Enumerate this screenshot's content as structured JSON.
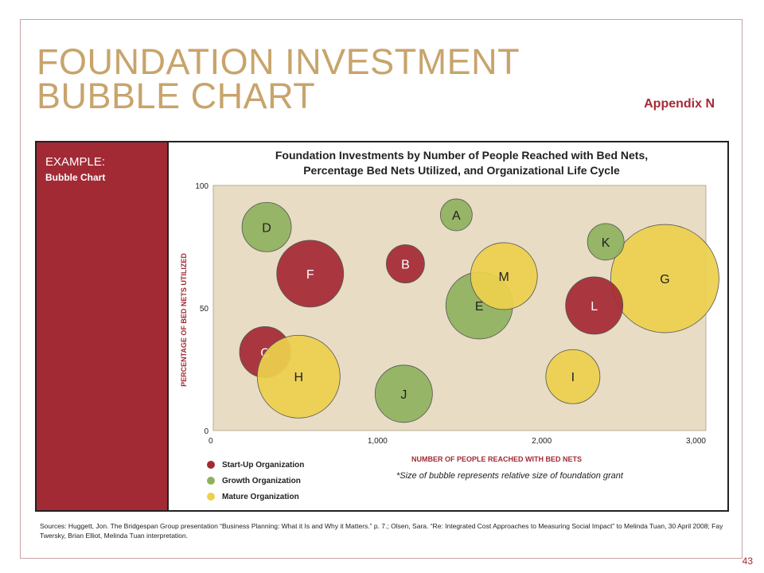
{
  "page": {
    "title_line1": "FOUNDATION INVESTMENT",
    "title_line2": "BUBBLE CHART",
    "appendix": "Appendix N",
    "example_label": "EXAMPLE:",
    "example_sub": "Bubble Chart",
    "sources": "Sources: Huggett, Jon. The Bridgespan Group presentation “Business Planning: What it Is and Why it Matters.” p. 7.; Olsen, Sara. “Re: Integrated Cost Approaches to Measuring Social Impact” to Melinda Tuan, 30 April 2008; Fay Twersky, Brian Elliot, Melinda Tuan interpretation.",
    "page_number": "43",
    "note": "*Size of bubble represents relative size of foundation grant"
  },
  "colors": {
    "accent": "#a22a35",
    "title_gold": "#c8a46c",
    "plot_bg": "#e8dcc5",
    "startup": "#a52a36",
    "growth": "#8fb15f",
    "mature": "#ecd04e"
  },
  "chart_data": {
    "type": "scatter",
    "subtype": "bubble",
    "title_line1": "Foundation Investments by Number of People Reached with Bed Nets,",
    "title_line2": "Percentage Bed Nets Utilized, and Organizational Life Cycle",
    "xlabel": "NUMBER OF PEOPLE REACHED WITH BED NETS",
    "ylabel": "PERCENTAGE OF BED NETS UTILIZED",
    "xlim": [
      0,
      3000
    ],
    "ylim": [
      0,
      100
    ],
    "xticks": [
      0,
      1000,
      2000,
      3000
    ],
    "xtick_labels": [
      "0",
      "1,000",
      "2,000",
      "3,000"
    ],
    "yticks": [
      0,
      50,
      100
    ],
    "ytick_labels": [
      "0",
      "50",
      "100"
    ],
    "grid": false,
    "legend_position": "bottom-left",
    "legend": [
      {
        "key": "startup",
        "label": "Start-Up Organization"
      },
      {
        "key": "growth",
        "label": "Growth Organization"
      },
      {
        "key": "mature",
        "label": "Mature Organization"
      }
    ],
    "points": [
      {
        "label": "A",
        "x": 1480,
        "y": 88,
        "size": 1.0,
        "stage": "growth"
      },
      {
        "label": "B",
        "x": 1170,
        "y": 68,
        "size": 1.2,
        "stage": "startup"
      },
      {
        "label": "C",
        "x": 315,
        "y": 32,
        "size": 1.6,
        "stage": "startup"
      },
      {
        "label": "D",
        "x": 325,
        "y": 83,
        "size": 1.55,
        "stage": "growth"
      },
      {
        "label": "E",
        "x": 1620,
        "y": 51,
        "size": 2.1,
        "stage": "growth"
      },
      {
        "label": "F",
        "x": 590,
        "y": 64,
        "size": 2.1,
        "stage": "startup"
      },
      {
        "label": "G",
        "x": 2750,
        "y": 62,
        "size": 3.4,
        "stage": "mature"
      },
      {
        "label": "H",
        "x": 520,
        "y": 22,
        "size": 2.6,
        "stage": "mature"
      },
      {
        "label": "I",
        "x": 2190,
        "y": 22,
        "size": 1.7,
        "stage": "mature"
      },
      {
        "label": "J",
        "x": 1160,
        "y": 15,
        "size": 1.8,
        "stage": "growth"
      },
      {
        "label": "K",
        "x": 2390,
        "y": 77,
        "size": 1.15,
        "stage": "growth"
      },
      {
        "label": "L",
        "x": 2320,
        "y": 51,
        "size": 1.8,
        "stage": "startup"
      },
      {
        "label": "M",
        "x": 1770,
        "y": 63,
        "size": 2.1,
        "stage": "mature"
      }
    ]
  }
}
